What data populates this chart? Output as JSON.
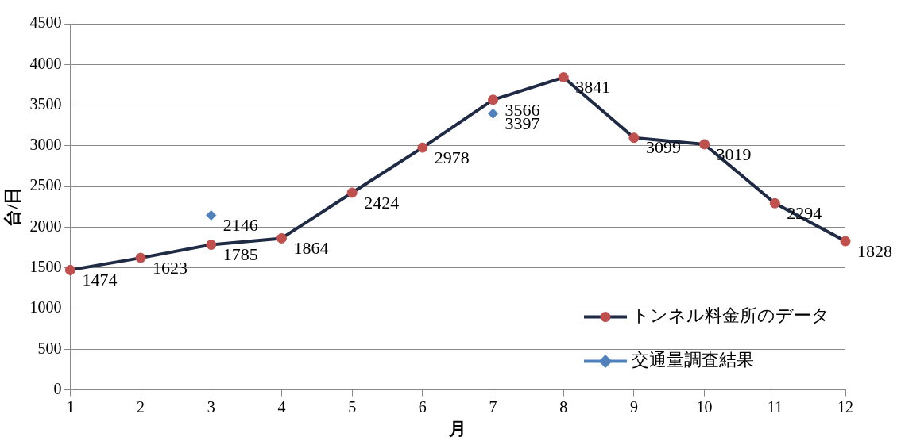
{
  "chart_data": {
    "type": "line",
    "xlabel": "月",
    "ylabel": "台/日",
    "x": [
      1,
      2,
      3,
      4,
      5,
      6,
      7,
      8,
      9,
      10,
      11,
      12
    ],
    "xlim": [
      1,
      12
    ],
    "xticks": [
      1,
      2,
      3,
      4,
      5,
      6,
      7,
      8,
      9,
      10,
      11,
      12
    ],
    "ylim": [
      0,
      4500
    ],
    "yticks": [
      0,
      500,
      1000,
      1500,
      2000,
      2500,
      3000,
      3500,
      4000,
      4500
    ],
    "grid": "y",
    "legend": "bottom right",
    "data_labels": true,
    "series": [
      {
        "name": "トンネル料金所のデータ",
        "color": "#1f2a44",
        "colors": [
          "#c0504d",
          "#c0504d",
          "#c0504d",
          "#c0504d",
          "#c0504d",
          "#c0504d",
          "#c0504d",
          "#c0504d",
          "#c0504d",
          "#c0504d",
          "#c0504d",
          "#c0504d"
        ],
        "marker": "circle",
        "values": [
          1474,
          1623,
          1785,
          1864,
          2424,
          2978,
          3566,
          3841,
          3099,
          3019,
          2294,
          1828
        ]
      },
      {
        "name": "交通量調査結果",
        "type": "scatter",
        "color": "#4f81bd",
        "marker": "diamond",
        "x": [
          3,
          7
        ],
        "values": [
          2146,
          3397
        ]
      }
    ]
  }
}
